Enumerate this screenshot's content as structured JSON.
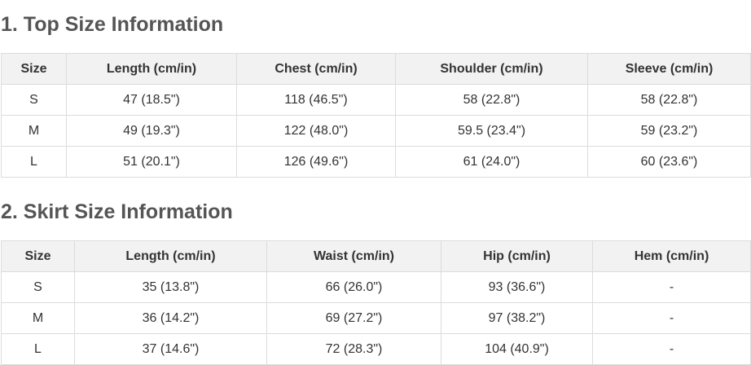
{
  "sections": [
    {
      "title": "1. Top Size Information",
      "table": {
        "headers": [
          "Size",
          "Length (cm/in)",
          "Chest (cm/in)",
          "Shoulder (cm/in)",
          "Sleeve (cm/in)"
        ],
        "rows": [
          [
            "S",
            "47 (18.5\")",
            "118 (46.5\")",
            "58 (22.8\")",
            "58 (22.8\")"
          ],
          [
            "M",
            "49 (19.3\")",
            "122 (48.0\")",
            "59.5 (23.4\")",
            "59 (23.2\")"
          ],
          [
            "L",
            "51 (20.1\")",
            "126 (49.6\")",
            "61 (24.0\")",
            "60 (23.6\")"
          ]
        ]
      }
    },
    {
      "title": "2. Skirt Size Information",
      "table": {
        "headers": [
          "Size",
          "Length (cm/in)",
          "Waist (cm/in)",
          "Hip (cm/in)",
          "Hem (cm/in)"
        ],
        "rows": [
          [
            "S",
            "35 (13.8\")",
            "66 (26.0\")",
            "93 (36.6\")",
            "-"
          ],
          [
            "M",
            "36 (14.2\")",
            "69 (27.2\")",
            "97 (38.2\")",
            "-"
          ],
          [
            "L",
            "37 (14.6\")",
            "72 (28.3\")",
            "104 (40.9\")",
            "-"
          ]
        ]
      }
    }
  ]
}
